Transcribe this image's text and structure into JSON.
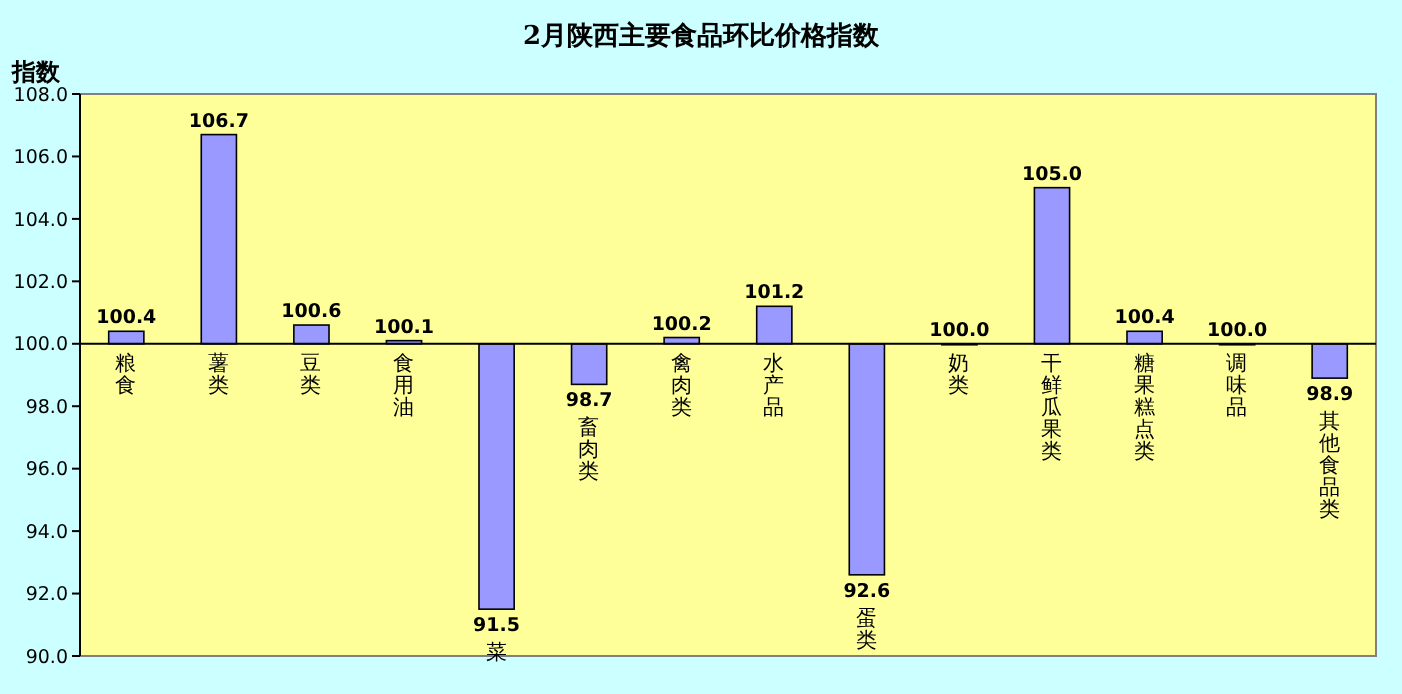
{
  "chart_data": {
    "type": "bar",
    "title": "2月陕西主要食品环比价格指数",
    "ylabel": "指数",
    "categories": [
      "粮食",
      "薯类",
      "豆类",
      "食用油",
      "菜",
      "畜肉类",
      "禽肉类",
      "水产品",
      "蛋类",
      "奶类",
      "干鲜瓜果类",
      "糖果糕点类",
      "调味品",
      "其他食品类"
    ],
    "base": [
      100,
      100,
      100,
      100,
      100,
      100,
      100,
      100,
      100,
      100,
      100,
      100,
      100,
      100
    ],
    "values": [
      0.4,
      6.7,
      0.6,
      0.1,
      -8.5,
      -1.3,
      0.2,
      1.2,
      -7.4,
      0.0,
      5.0,
      0.4,
      0.0,
      -1.1
    ],
    "value_labels": [
      "100.4",
      "106.7",
      "100.6",
      "100.1",
      "91.5",
      "98.7",
      "100.2",
      "101.2",
      "92.6",
      "100.0",
      "105.0",
      "100.4",
      "100.0",
      "98.9"
    ],
    "color": "#9999ff",
    "ylim": [
      90,
      108
    ],
    "yticks": [
      {
        "value": 90,
        "label": "90.0"
      },
      {
        "value": 92,
        "label": "92.0"
      },
      {
        "value": 94,
        "label": "94.0"
      },
      {
        "value": 96,
        "label": "96.0"
      },
      {
        "value": 98,
        "label": "98.0"
      },
      {
        "value": 100,
        "label": "100.0"
      },
      {
        "value": 102,
        "label": "102.0"
      },
      {
        "value": 104,
        "label": "104.0"
      },
      {
        "value": 106,
        "label": "106.0"
      },
      {
        "value": 108,
        "label": "108.0"
      }
    ],
    "grid": false
  }
}
